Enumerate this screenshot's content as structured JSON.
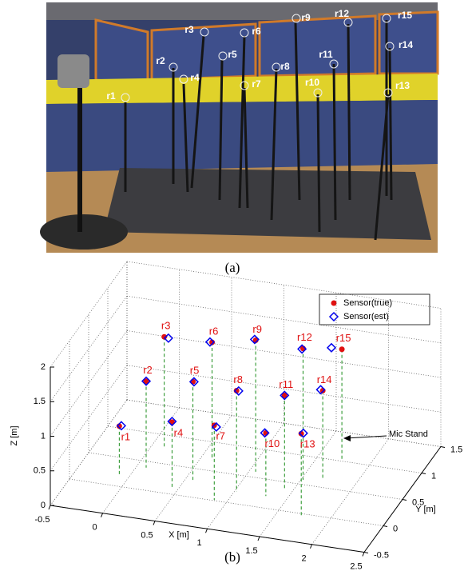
{
  "panel_a": {
    "caption": "(a)",
    "labels": [
      "r1",
      "r2",
      "r3",
      "r4",
      "r5",
      "r6",
      "r7",
      "r8",
      "r9",
      "r10",
      "r11",
      "r12",
      "r13",
      "r14",
      "r15"
    ]
  },
  "chart_data": {
    "type": "scatter3d",
    "caption": "(b)",
    "xlabel": "X [m]",
    "ylabel": "Y [m]",
    "zlabel": "Z [m]",
    "xlim": [
      -0.5,
      2.5
    ],
    "ylim": [
      -0.5,
      1.5
    ],
    "zlim": [
      0,
      2
    ],
    "xticks": [
      -0.5,
      0,
      0.5,
      1,
      1.5,
      2,
      2.5
    ],
    "yticks": [
      -0.5,
      0,
      0.5,
      1,
      1.5
    ],
    "zticks": [
      0,
      0.5,
      1,
      1.5,
      2
    ],
    "grid": true,
    "legend": "upper right",
    "stand_color": "#1a8c1a",
    "point_labels": [
      "r1",
      "r2",
      "r3",
      "r4",
      "r5",
      "r6",
      "r7",
      "r8",
      "r9",
      "r10",
      "r11",
      "r12",
      "r13",
      "r14",
      "r15"
    ],
    "annotation": "Mic Stand",
    "series": [
      {
        "name": "Sensor(true)",
        "color": "#e01010",
        "marker": "circle",
        "x": [
          -0.09,
          0.09,
          0.12,
          0.44,
          0.57,
          0.61,
          0.88,
          1.02,
          1.06,
          1.3,
          1.42,
          1.52,
          1.73,
          1.69,
          1.73
        ],
        "y": [
          0.18,
          0.39,
          0.78,
          0.11,
          0.3,
          0.69,
          0.01,
          0.21,
          0.6,
          0.21,
          0.37,
          0.58,
          -0.04,
          0.63,
          1.02
        ],
        "z": [
          0.72,
          1.25,
          1.6,
          0.95,
          1.42,
          1.7,
          1.08,
          1.46,
          1.9,
          0.91,
          1.36,
          1.9,
          1.19,
          1.29,
          1.6
        ]
      },
      {
        "name": "Sensor(est)",
        "color": "#0000ee",
        "marker": "diamond",
        "x": [
          -0.07,
          0.09,
          0.16,
          0.44,
          0.58,
          0.59,
          0.9,
          1.04,
          1.05,
          1.29,
          1.42,
          1.51,
          1.75,
          1.67,
          1.63
        ],
        "y": [
          0.18,
          0.39,
          0.78,
          0.11,
          0.3,
          0.69,
          0.01,
          0.21,
          0.6,
          0.21,
          0.37,
          0.58,
          -0.04,
          0.63,
          1.02
        ],
        "z": [
          0.73,
          1.25,
          1.59,
          0.96,
          1.42,
          1.7,
          1.06,
          1.46,
          1.91,
          0.91,
          1.36,
          1.89,
          1.2,
          1.3,
          1.6
        ]
      }
    ]
  }
}
